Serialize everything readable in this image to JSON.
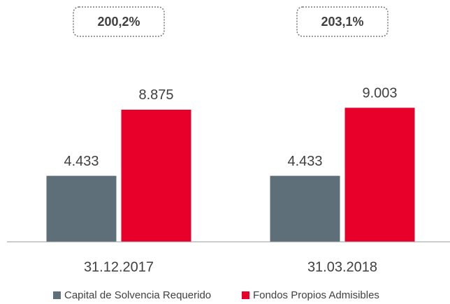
{
  "chart_data": {
    "type": "bar",
    "categories": [
      "31.12.2017",
      "31.03.2018"
    ],
    "annotations": [
      "200,2%",
      "203,1%"
    ],
    "series": [
      {
        "name": "Capital de Solvencia Requerido",
        "color": "#5f6f7a",
        "values": [
          4433,
          4433
        ],
        "value_labels": [
          "4.433",
          "4.433"
        ]
      },
      {
        "name": "Fondos Propios Admisibles",
        "color": "#e8002a",
        "values": [
          8875,
          9003
        ],
        "value_labels": [
          "8.875",
          "9.003"
        ]
      }
    ],
    "ylim": [
      0,
      10000
    ]
  }
}
